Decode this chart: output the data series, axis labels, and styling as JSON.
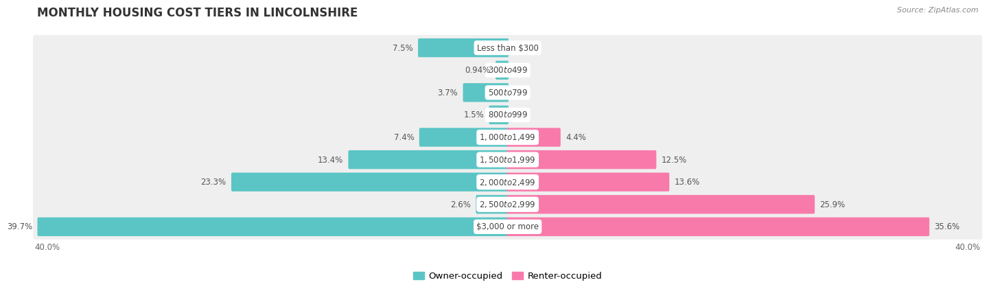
{
  "title": "MONTHLY HOUSING COST TIERS IN LINCOLNSHIRE",
  "source": "Source: ZipAtlas.com",
  "categories": [
    "Less than $300",
    "$300 to $499",
    "$500 to $799",
    "$800 to $999",
    "$1,000 to $1,499",
    "$1,500 to $1,999",
    "$2,000 to $2,499",
    "$2,500 to $2,999",
    "$3,000 or more"
  ],
  "owner_values": [
    7.5,
    0.94,
    3.7,
    1.5,
    7.4,
    13.4,
    23.3,
    2.6,
    39.7
  ],
  "renter_values": [
    0.0,
    0.0,
    0.0,
    0.0,
    4.4,
    12.5,
    13.6,
    25.9,
    35.6
  ],
  "owner_color": "#5bc5c5",
  "renter_color": "#f87aab",
  "row_bg_color": "#efefef",
  "axis_max": 40.0,
  "legend_owner": "Owner-occupied",
  "legend_renter": "Renter-occupied",
  "title_fontsize": 12,
  "source_fontsize": 8,
  "bar_label_fontsize": 8.5,
  "category_fontsize": 8.5,
  "legend_fontsize": 9.5,
  "axis_label_fontsize": 8.5
}
